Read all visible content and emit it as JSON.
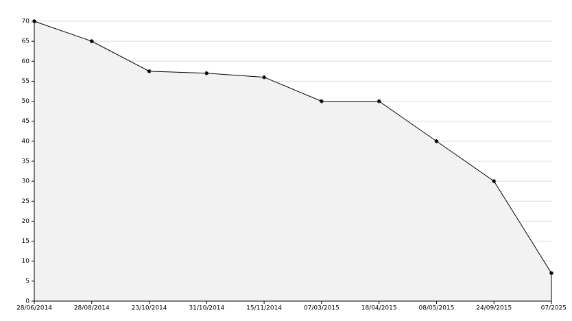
{
  "chart_data": {
    "type": "area",
    "categories": [
      "28/06/2014",
      "28/08/2014",
      "23/10/2014",
      "31/10/2014",
      "15/11/2014",
      "07/03/2015",
      "18/04/2015",
      "08/05/2015",
      "24/09/2015",
      "07/2025"
    ],
    "values": [
      70,
      65,
      57.5,
      57,
      56,
      50,
      50,
      40,
      30,
      7
    ],
    "color": "#000000",
    "fill": "#f2f2f2",
    "ylim": [
      0,
      70
    ],
    "yticks": [
      0,
      5,
      10,
      15,
      20,
      25,
      30,
      35,
      40,
      45,
      50,
      55,
      60,
      65,
      70
    ],
    "grid": true
  }
}
